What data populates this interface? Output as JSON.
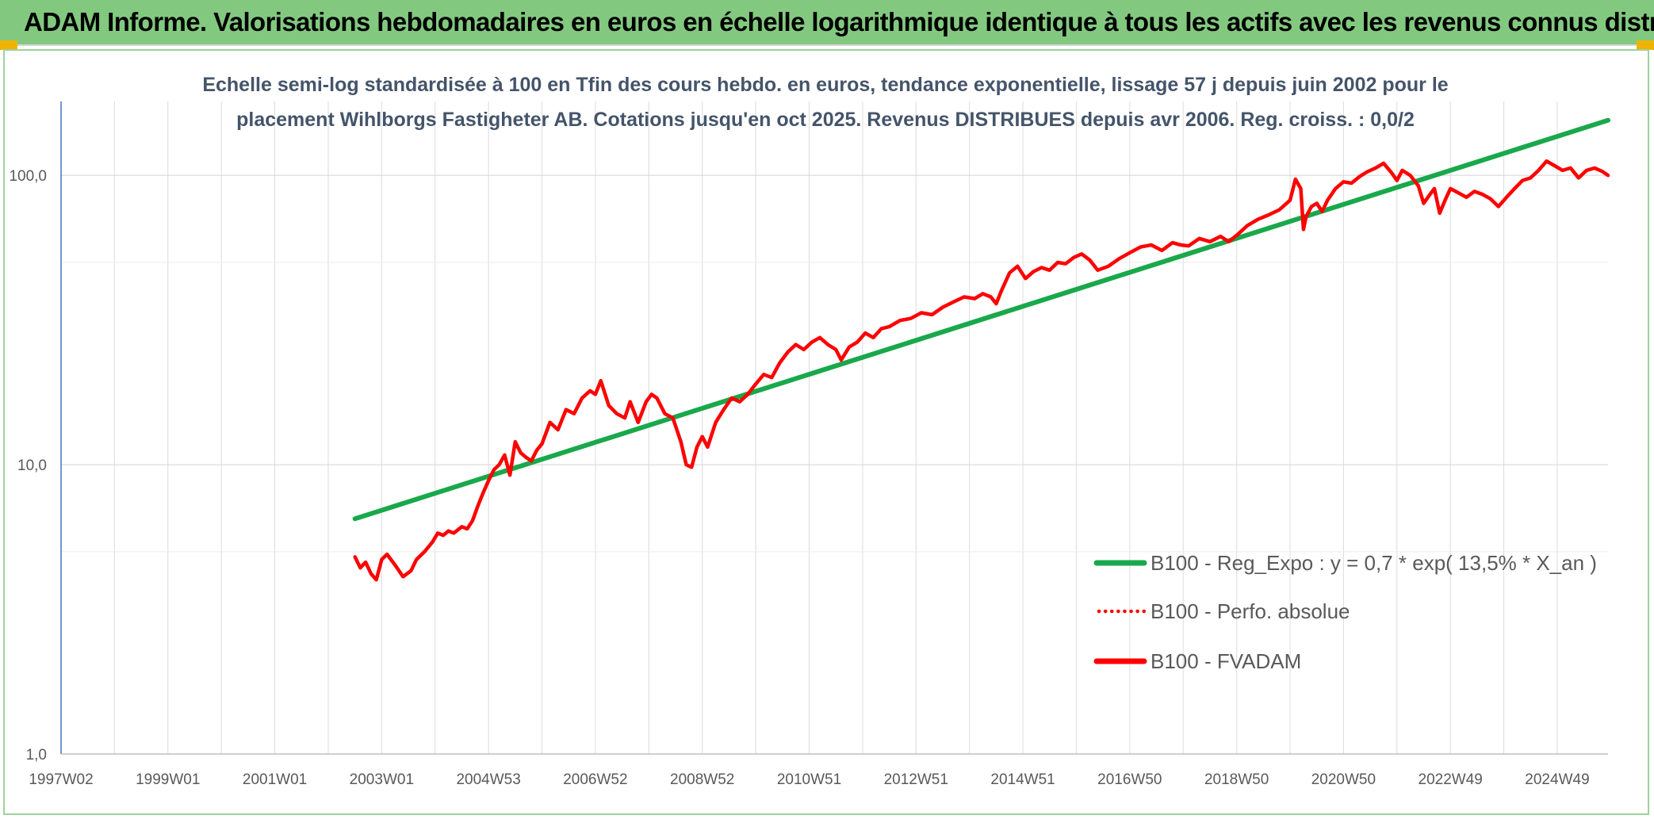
{
  "banner": {
    "title": "ADAM Informe. Valorisations hebdomadaires en euros en échelle logarithmique identique à tous les actifs avec les revenus connus distribués"
  },
  "colors": {
    "banner": "#82c97f",
    "trend": "#19a84b",
    "series": "#ff0000",
    "corner": "#f0b400"
  },
  "chart_data": {
    "type": "line",
    "title_lines": [
      "Echelle semi-log standardisée à 100 en Tfin des cours hebdo. en euros, tendance exponentielle, lissage 57 j depuis juin 2002 pour le",
      "placement Wihlborgs Fastigheter AB. Cotations jusqu'en oct 2025. Revenus DISTRIBUES depuis avr 2006. Reg. croiss. : 0,0/2"
    ],
    "y_scale": "log",
    "ylim": [
      1,
      180
    ],
    "y_ticks": [
      1,
      10,
      100
    ],
    "y_tick_labels": [
      "1,0",
      "10,0",
      "100,0"
    ],
    "xlim": [
      1997.0,
      2025.95
    ],
    "x_ticks": [
      1997.0,
      1999.0,
      2001.0,
      2003.0,
      2005.0,
      2007.0,
      2009.0,
      2011.0,
      2013.0,
      2015.0,
      2017.0,
      2019.0,
      2021.0,
      2023.0,
      2025.0
    ],
    "x_tick_labels": [
      "1997W02",
      "1999W01",
      "2001W01",
      "2003W01",
      "2004W53",
      "2006W52",
      "2008W52",
      "2010W51",
      "2012W51",
      "2014W51",
      "2016W50",
      "2018W50",
      "2020W50",
      "2022W49",
      "2024W49"
    ],
    "grid": true,
    "legend_position": "right",
    "legend": [
      "B100 - Reg_Expo : y = 0,7 * exp( 13,5% *  X_an )",
      "B100 - Perfo. absolue",
      "B100 - FVADAM"
    ],
    "series": [
      {
        "name": "B100 - Reg_Expo : y = 0,7 * exp( 13,5% *  X_an )",
        "style": "solid-green",
        "x": [
          2002.5,
          2025.95
        ],
        "y": [
          6.5,
          155
        ]
      },
      {
        "name": "B100 - Perfo. absolue",
        "style": "dotted-red",
        "x": [],
        "y": []
      },
      {
        "name": "B100 - FVADAM",
        "style": "solid-red",
        "x": [
          2002.5,
          2002.6,
          2002.7,
          2002.8,
          2002.9,
          2003.0,
          2003.1,
          2003.25,
          2003.4,
          2003.55,
          2003.65,
          2003.8,
          2003.95,
          2004.05,
          2004.15,
          2004.25,
          2004.35,
          2004.5,
          2004.6,
          2004.7,
          2004.8,
          2004.9,
          2005.0,
          2005.1,
          2005.2,
          2005.3,
          2005.4,
          2005.5,
          2005.6,
          2005.7,
          2005.8,
          2005.9,
          2006.0,
          2006.15,
          2006.3,
          2006.45,
          2006.6,
          2006.75,
          2006.9,
          2007.0,
          2007.1,
          2007.25,
          2007.4,
          2007.55,
          2007.65,
          2007.8,
          2007.95,
          2008.05,
          2008.15,
          2008.3,
          2008.45,
          2008.6,
          2008.7,
          2008.8,
          2008.9,
          2009.0,
          2009.1,
          2009.25,
          2009.4,
          2009.55,
          2009.7,
          2009.85,
          2010.0,
          2010.15,
          2010.3,
          2010.45,
          2010.6,
          2010.75,
          2010.9,
          2011.05,
          2011.2,
          2011.35,
          2011.5,
          2011.6,
          2011.75,
          2011.9,
          2012.05,
          2012.2,
          2012.35,
          2012.5,
          2012.7,
          2012.9,
          2013.1,
          2013.3,
          2013.5,
          2013.7,
          2013.9,
          2014.1,
          2014.25,
          2014.4,
          2014.5,
          2014.6,
          2014.75,
          2014.9,
          2015.05,
          2015.2,
          2015.35,
          2015.5,
          2015.65,
          2015.8,
          2015.95,
          2016.1,
          2016.25,
          2016.4,
          2016.6,
          2016.8,
          2017.0,
          2017.2,
          2017.4,
          2017.6,
          2017.8,
          2017.95,
          2018.1,
          2018.3,
          2018.5,
          2018.7,
          2018.85,
          2019.0,
          2019.2,
          2019.4,
          2019.6,
          2019.8,
          2020.0,
          2020.1,
          2020.2,
          2020.25,
          2020.3,
          2020.4,
          2020.5,
          2020.6,
          2020.7,
          2020.85,
          2021.0,
          2021.15,
          2021.3,
          2021.45,
          2021.6,
          2021.75,
          2021.9,
          2022.0,
          2022.1,
          2022.25,
          2022.4,
          2022.5,
          2022.6,
          2022.7,
          2022.8,
          2022.9,
          2023.0,
          2023.15,
          2023.3,
          2023.45,
          2023.6,
          2023.75,
          2023.9,
          2024.05,
          2024.2,
          2024.35,
          2024.5,
          2024.65,
          2024.8,
          2024.95,
          2025.1,
          2025.25,
          2025.4,
          2025.55,
          2025.7,
          2025.85,
          2025.95
        ],
        "y": [
          4.8,
          4.4,
          4.6,
          4.2,
          4.0,
          4.7,
          4.9,
          4.5,
          4.1,
          4.3,
          4.7,
          5.0,
          5.4,
          5.8,
          5.7,
          5.9,
          5.8,
          6.1,
          6.0,
          6.4,
          7.2,
          8.0,
          8.8,
          9.6,
          10.0,
          10.8,
          9.2,
          12.0,
          11.0,
          10.6,
          10.3,
          11.2,
          11.8,
          14.0,
          13.2,
          15.5,
          15.0,
          17.0,
          18.0,
          17.5,
          19.5,
          16.0,
          15.0,
          14.5,
          16.5,
          14.0,
          16.5,
          17.5,
          17.0,
          15.0,
          14.5,
          12.0,
          10.0,
          9.8,
          11.5,
          12.5,
          11.5,
          14.0,
          15.5,
          17.0,
          16.5,
          17.5,
          19.0,
          20.5,
          20.0,
          22.5,
          24.5,
          26.0,
          25.0,
          26.5,
          27.5,
          26.0,
          25.0,
          23.0,
          25.5,
          26.5,
          28.5,
          27.5,
          29.5,
          30.0,
          31.5,
          32.0,
          33.5,
          33.0,
          35.0,
          36.5,
          38.0,
          37.5,
          39.0,
          38.0,
          36.0,
          40.0,
          46.0,
          48.5,
          44.0,
          46.5,
          48.0,
          47.0,
          50.0,
          49.5,
          52.0,
          53.5,
          51.0,
          47.0,
          48.5,
          51.5,
          54.0,
          56.5,
          57.5,
          55.0,
          58.5,
          57.5,
          57.0,
          60.5,
          59.0,
          61.5,
          59.0,
          62.0,
          67.0,
          70.5,
          73.0,
          76.0,
          82.0,
          97.0,
          90.0,
          65.0,
          72.0,
          78.0,
          80.0,
          75.0,
          82.0,
          90.0,
          95.0,
          94.0,
          99.0,
          103.0,
          106.0,
          110.0,
          102.0,
          96.0,
          104.0,
          100.0,
          92.0,
          80.0,
          85.0,
          90.0,
          74.0,
          82.0,
          90.0,
          87.0,
          84.0,
          88.0,
          86.0,
          83.0,
          78.0,
          84.0,
          90.0,
          96.0,
          98.0,
          104.0,
          112.0,
          108.0,
          104.0,
          106.0,
          98.0,
          104.0,
          106.0,
          103.0,
          100.0
        ]
      }
    ]
  }
}
